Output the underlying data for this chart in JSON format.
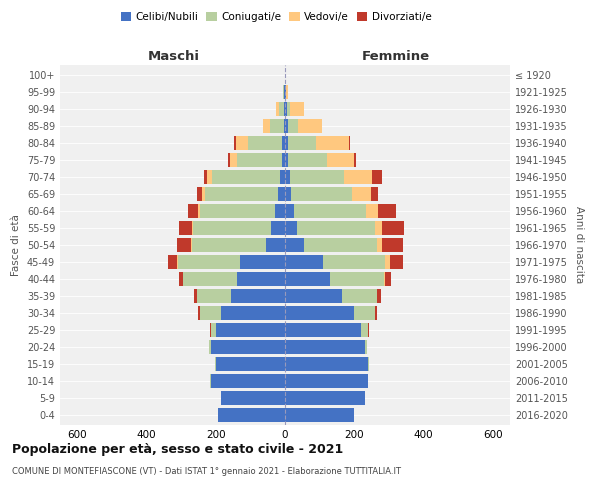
{
  "age_groups": [
    "0-4",
    "5-9",
    "10-14",
    "15-19",
    "20-24",
    "25-29",
    "30-34",
    "35-39",
    "40-44",
    "45-49",
    "50-54",
    "55-59",
    "60-64",
    "65-69",
    "70-74",
    "75-79",
    "80-84",
    "85-89",
    "90-94",
    "95-99",
    "100+"
  ],
  "birth_years": [
    "2016-2020",
    "2011-2015",
    "2006-2010",
    "2001-2005",
    "1996-2000",
    "1991-1995",
    "1986-1990",
    "1981-1985",
    "1976-1980",
    "1971-1975",
    "1966-1970",
    "1961-1965",
    "1956-1960",
    "1951-1955",
    "1946-1950",
    "1941-1945",
    "1936-1940",
    "1931-1935",
    "1926-1930",
    "1921-1925",
    "≤ 1920"
  ],
  "males": {
    "celibe": [
      195,
      185,
      215,
      200,
      215,
      200,
      185,
      155,
      140,
      130,
      55,
      40,
      30,
      20,
      15,
      10,
      8,
      4,
      3,
      2,
      0
    ],
    "coniugato": [
      0,
      0,
      1,
      2,
      5,
      15,
      60,
      100,
      155,
      180,
      215,
      225,
      215,
      210,
      195,
      130,
      100,
      40,
      15,
      3,
      0
    ],
    "vedovo": [
      0,
      0,
      0,
      0,
      0,
      0,
      0,
      0,
      1,
      2,
      3,
      5,
      5,
      10,
      15,
      20,
      35,
      20,
      8,
      2,
      0
    ],
    "divorziato": [
      0,
      0,
      0,
      0,
      0,
      2,
      5,
      8,
      10,
      25,
      40,
      35,
      30,
      15,
      10,
      5,
      5,
      0,
      0,
      0,
      0
    ]
  },
  "females": {
    "nubile": [
      200,
      230,
      240,
      240,
      230,
      220,
      200,
      165,
      130,
      110,
      55,
      35,
      25,
      18,
      15,
      10,
      10,
      8,
      5,
      2,
      0
    ],
    "coniugata": [
      0,
      0,
      1,
      3,
      8,
      20,
      60,
      100,
      155,
      180,
      210,
      225,
      210,
      175,
      155,
      110,
      80,
      30,
      10,
      2,
      0
    ],
    "vedova": [
      0,
      0,
      0,
      0,
      0,
      0,
      0,
      2,
      5,
      12,
      15,
      20,
      35,
      55,
      80,
      80,
      95,
      70,
      40,
      5,
      0
    ],
    "divorziata": [
      0,
      0,
      0,
      0,
      0,
      2,
      5,
      10,
      15,
      40,
      60,
      65,
      50,
      20,
      30,
      5,
      3,
      0,
      0,
      0,
      0
    ]
  },
  "colors": {
    "celibe": "#4472C4",
    "coniugato": "#b8cfa0",
    "vedovo": "#ffc87f",
    "divorziato": "#c0392b"
  },
  "xlim": 650,
  "title": "Popolazione per età, sesso e stato civile - 2021",
  "subtitle": "COMUNE DI MONTEFIASCONE (VT) - Dati ISTAT 1° gennaio 2021 - Elaborazione TUTTITALIA.IT",
  "legend_labels": [
    "Celibi/Nubili",
    "Coniugati/e",
    "Vedovi/e",
    "Divorziati/e"
  ],
  "bg_color": "#f0f0f0"
}
